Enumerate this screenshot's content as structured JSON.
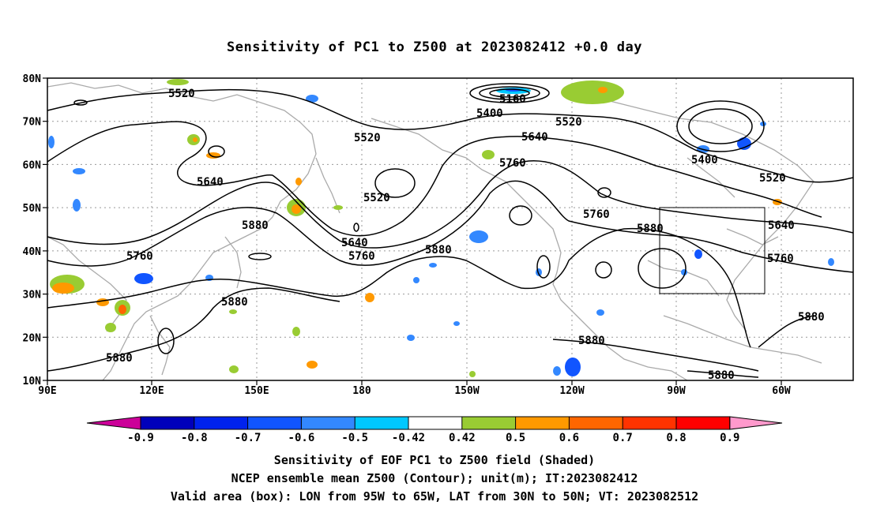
{
  "title": "Sensitivity of PC1 to Z500 at 2023082412 +0.0 day",
  "map": {
    "lat_labels": [
      "80N",
      "70N",
      "60N",
      "50N",
      "40N",
      "30N",
      "20N",
      "10N"
    ],
    "lon_labels": [
      "90E",
      "120E",
      "150E",
      "180",
      "150W",
      "120W",
      "90W",
      "60W"
    ],
    "contour_labels": [
      "5520",
      "5160",
      "5400",
      "5520",
      "5520",
      "5640",
      "5760",
      "5400",
      "5520",
      "5640",
      "5520",
      "5640",
      "5760",
      "5760",
      "5880",
      "5880",
      "5640",
      "5760",
      "5880",
      "5880",
      "5880",
      "5880",
      "5760",
      "5880",
      "5880"
    ],
    "box": {
      "lon_from": "95W",
      "lon_to": "65W",
      "lat_from": "30N",
      "lat_to": "50N"
    }
  },
  "colorbar": {
    "labels": [
      "-0.9",
      "-0.8",
      "-0.7",
      "-0.6",
      "-0.5",
      "-0.42",
      "0.42",
      "0.5",
      "0.6",
      "0.7",
      "0.8",
      "0.9"
    ],
    "colors": [
      "#cc0099",
      "#0000bb",
      "#0022ee",
      "#1155ff",
      "#3388ff",
      "#00c8ff",
      "#ffffff",
      "#99cc33",
      "#ff9900",
      "#ff6600",
      "#ff3300",
      "#ff0000",
      "#ff99cc"
    ]
  },
  "captions": {
    "line1": "Sensitivity of EOF PC1 to Z500 field (Shaded)",
    "line2": "NCEP ensemble mean Z500 (Contour); unit(m); IT:2023082412",
    "line3": "Valid area (box): LON from 95W to 65W, LAT from 30N to 50N; VT: 2023082512"
  }
}
